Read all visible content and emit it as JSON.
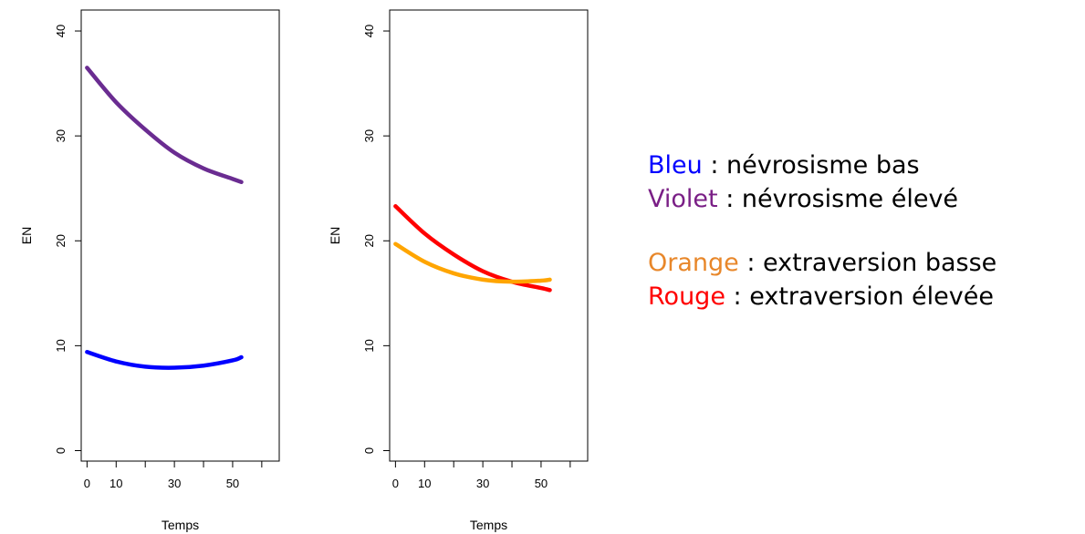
{
  "chart_data": [
    {
      "type": "line",
      "xlabel": "Temps",
      "ylabel": "EN",
      "xticks": [
        0,
        10,
        30,
        50
      ],
      "yticks": [
        0,
        10,
        20,
        30,
        40
      ],
      "xlim": [
        -2,
        66
      ],
      "ylim": [
        -1,
        42
      ],
      "grid": false,
      "series": [
        {
          "color": "#6a2c91",
          "x": [
            0,
            10,
            20,
            30,
            40,
            50,
            53
          ],
          "y": [
            36.5,
            33.2,
            30.6,
            28.4,
            26.9,
            25.9,
            25.6
          ]
        },
        {
          "color": "#0000ff",
          "x": [
            0,
            10,
            20,
            30,
            40,
            50,
            53
          ],
          "y": [
            9.4,
            8.5,
            8.0,
            7.9,
            8.1,
            8.6,
            8.9
          ]
        }
      ]
    },
    {
      "type": "line",
      "xlabel": "Temps",
      "ylabel": "EN",
      "xticks": [
        0,
        10,
        30,
        50
      ],
      "yticks": [
        0,
        10,
        20,
        30,
        40
      ],
      "xlim": [
        -2,
        66
      ],
      "ylim": [
        -1,
        42
      ],
      "grid": false,
      "series": [
        {
          "color": "#ff0000",
          "x": [
            0,
            10,
            20,
            30,
            40,
            50,
            53
          ],
          "y": [
            23.3,
            20.7,
            18.7,
            17.1,
            16.1,
            15.5,
            15.3
          ]
        },
        {
          "color": "#ffa500",
          "x": [
            0,
            10,
            20,
            30,
            40,
            50,
            53
          ],
          "y": [
            19.7,
            18.0,
            16.9,
            16.3,
            16.1,
            16.2,
            16.3
          ]
        }
      ]
    }
  ],
  "legend": {
    "items": [
      {
        "colored": "Bleu",
        "rest": " : névrosisme bas",
        "color": "#0000ff"
      },
      {
        "colored": "Violet",
        "rest": " : névrosisme élevé",
        "color": "#7a1f86"
      },
      {
        "colored": "Orange",
        "rest": " : extraversion basse",
        "color": "#e8872a"
      },
      {
        "colored": "Rouge",
        "rest": " : extraversion élevée",
        "color": "#ff0000"
      }
    ]
  }
}
